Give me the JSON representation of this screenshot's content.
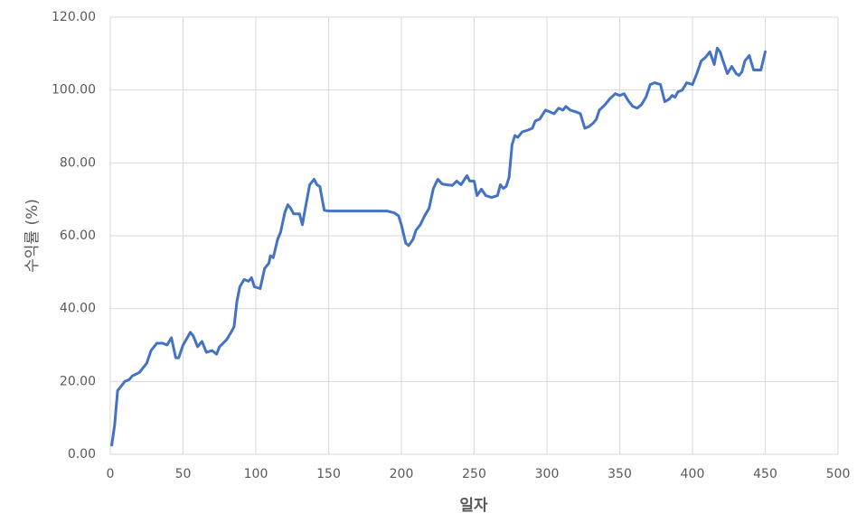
{
  "chart_data": {
    "type": "line",
    "x_label": "일자",
    "y_label": "수익률 (%)",
    "series": [
      {
        "name": "수익률",
        "color": "#4472c4",
        "x": [
          1,
          3,
          5,
          8,
          10,
          13,
          15,
          20,
          25,
          28,
          32,
          36,
          39,
          42,
          45,
          47,
          50,
          55,
          57,
          60,
          63,
          66,
          70,
          73,
          75,
          80,
          83,
          85,
          87,
          89,
          92,
          95,
          97,
          99,
          103,
          106,
          109,
          110,
          112,
          115,
          117,
          120,
          122,
          124,
          126,
          130,
          132,
          134,
          137,
          140,
          142,
          144,
          147,
          150,
          190,
          195,
          198,
          200,
          203,
          205,
          208,
          210,
          213,
          216,
          219,
          222,
          225,
          228,
          231,
          235,
          238,
          241,
          245,
          247,
          250,
          252,
          255,
          258,
          262,
          266,
          268,
          270,
          272,
          274,
          276,
          278,
          280,
          283,
          287,
          290,
          292,
          295,
          299,
          302,
          305,
          308,
          311,
          313,
          316,
          320,
          323,
          326,
          329,
          332,
          334,
          336,
          340,
          343,
          347,
          350,
          353,
          356,
          359,
          362,
          365,
          368,
          371,
          374,
          378,
          381,
          384,
          386,
          388,
          390,
          393,
          396,
          400,
          403,
          406,
          409,
          412,
          415,
          417,
          419,
          421,
          424,
          427,
          430,
          432,
          434,
          436,
          439,
          442,
          445,
          447,
          450
        ],
        "values": [
          2.5,
          8,
          17.5,
          19,
          20,
          20.5,
          21.5,
          22.5,
          25,
          28.5,
          30.5,
          30.5,
          30,
          32,
          26.5,
          26.5,
          30,
          33.5,
          32.5,
          29.5,
          31,
          28,
          28.5,
          27.5,
          29.5,
          31.5,
          33.5,
          35,
          42,
          46,
          48,
          47.5,
          48.5,
          46,
          45.5,
          51,
          52.5,
          54.5,
          54,
          59,
          61,
          66.5,
          68.5,
          67.5,
          66,
          66,
          63,
          67.5,
          74,
          75.5,
          74,
          73.5,
          67,
          66.8,
          66.8,
          66.3,
          65.5,
          63,
          58,
          57.3,
          59,
          61.5,
          63,
          65.5,
          67.5,
          73,
          75.5,
          74.2,
          74,
          73.8,
          75,
          74,
          76.5,
          75,
          75,
          71,
          72.8,
          71,
          70.5,
          71,
          74,
          73,
          73.5,
          76,
          85,
          87.5,
          87,
          88.5,
          89,
          89.5,
          91.5,
          92,
          94.5,
          94,
          93.5,
          95,
          94.5,
          95.5,
          94.5,
          94,
          93.5,
          89.5,
          90,
          91,
          92,
          94.5,
          96,
          97.5,
          99,
          98.5,
          99,
          97,
          95.5,
          95,
          96,
          98,
          101.5,
          102,
          101.5,
          96.8,
          97.5,
          98.5,
          98,
          99.5,
          100,
          102,
          101.5,
          104.5,
          108,
          109,
          110.5,
          107,
          111.5,
          110.5,
          108,
          104.5,
          106.5,
          104.5,
          104,
          105,
          108,
          109.5,
          105.5,
          105.5,
          105.5,
          110.5
        ]
      }
    ],
    "xlim": [
      0,
      500
    ],
    "xticks": [
      0,
      50,
      100,
      150,
      200,
      250,
      300,
      350,
      400,
      450,
      500
    ],
    "ylim": [
      0,
      120
    ],
    "yticks": [
      {
        "value": 0,
        "label": "0.00"
      },
      {
        "value": 20,
        "label": "20.00"
      },
      {
        "value": 40,
        "label": "40.00"
      },
      {
        "value": 60,
        "label": "60.00"
      },
      {
        "value": 80,
        "label": "80.00"
      },
      {
        "value": 100,
        "label": "100.00"
      },
      {
        "value": 120,
        "label": "120.00"
      }
    ],
    "grid": true
  }
}
